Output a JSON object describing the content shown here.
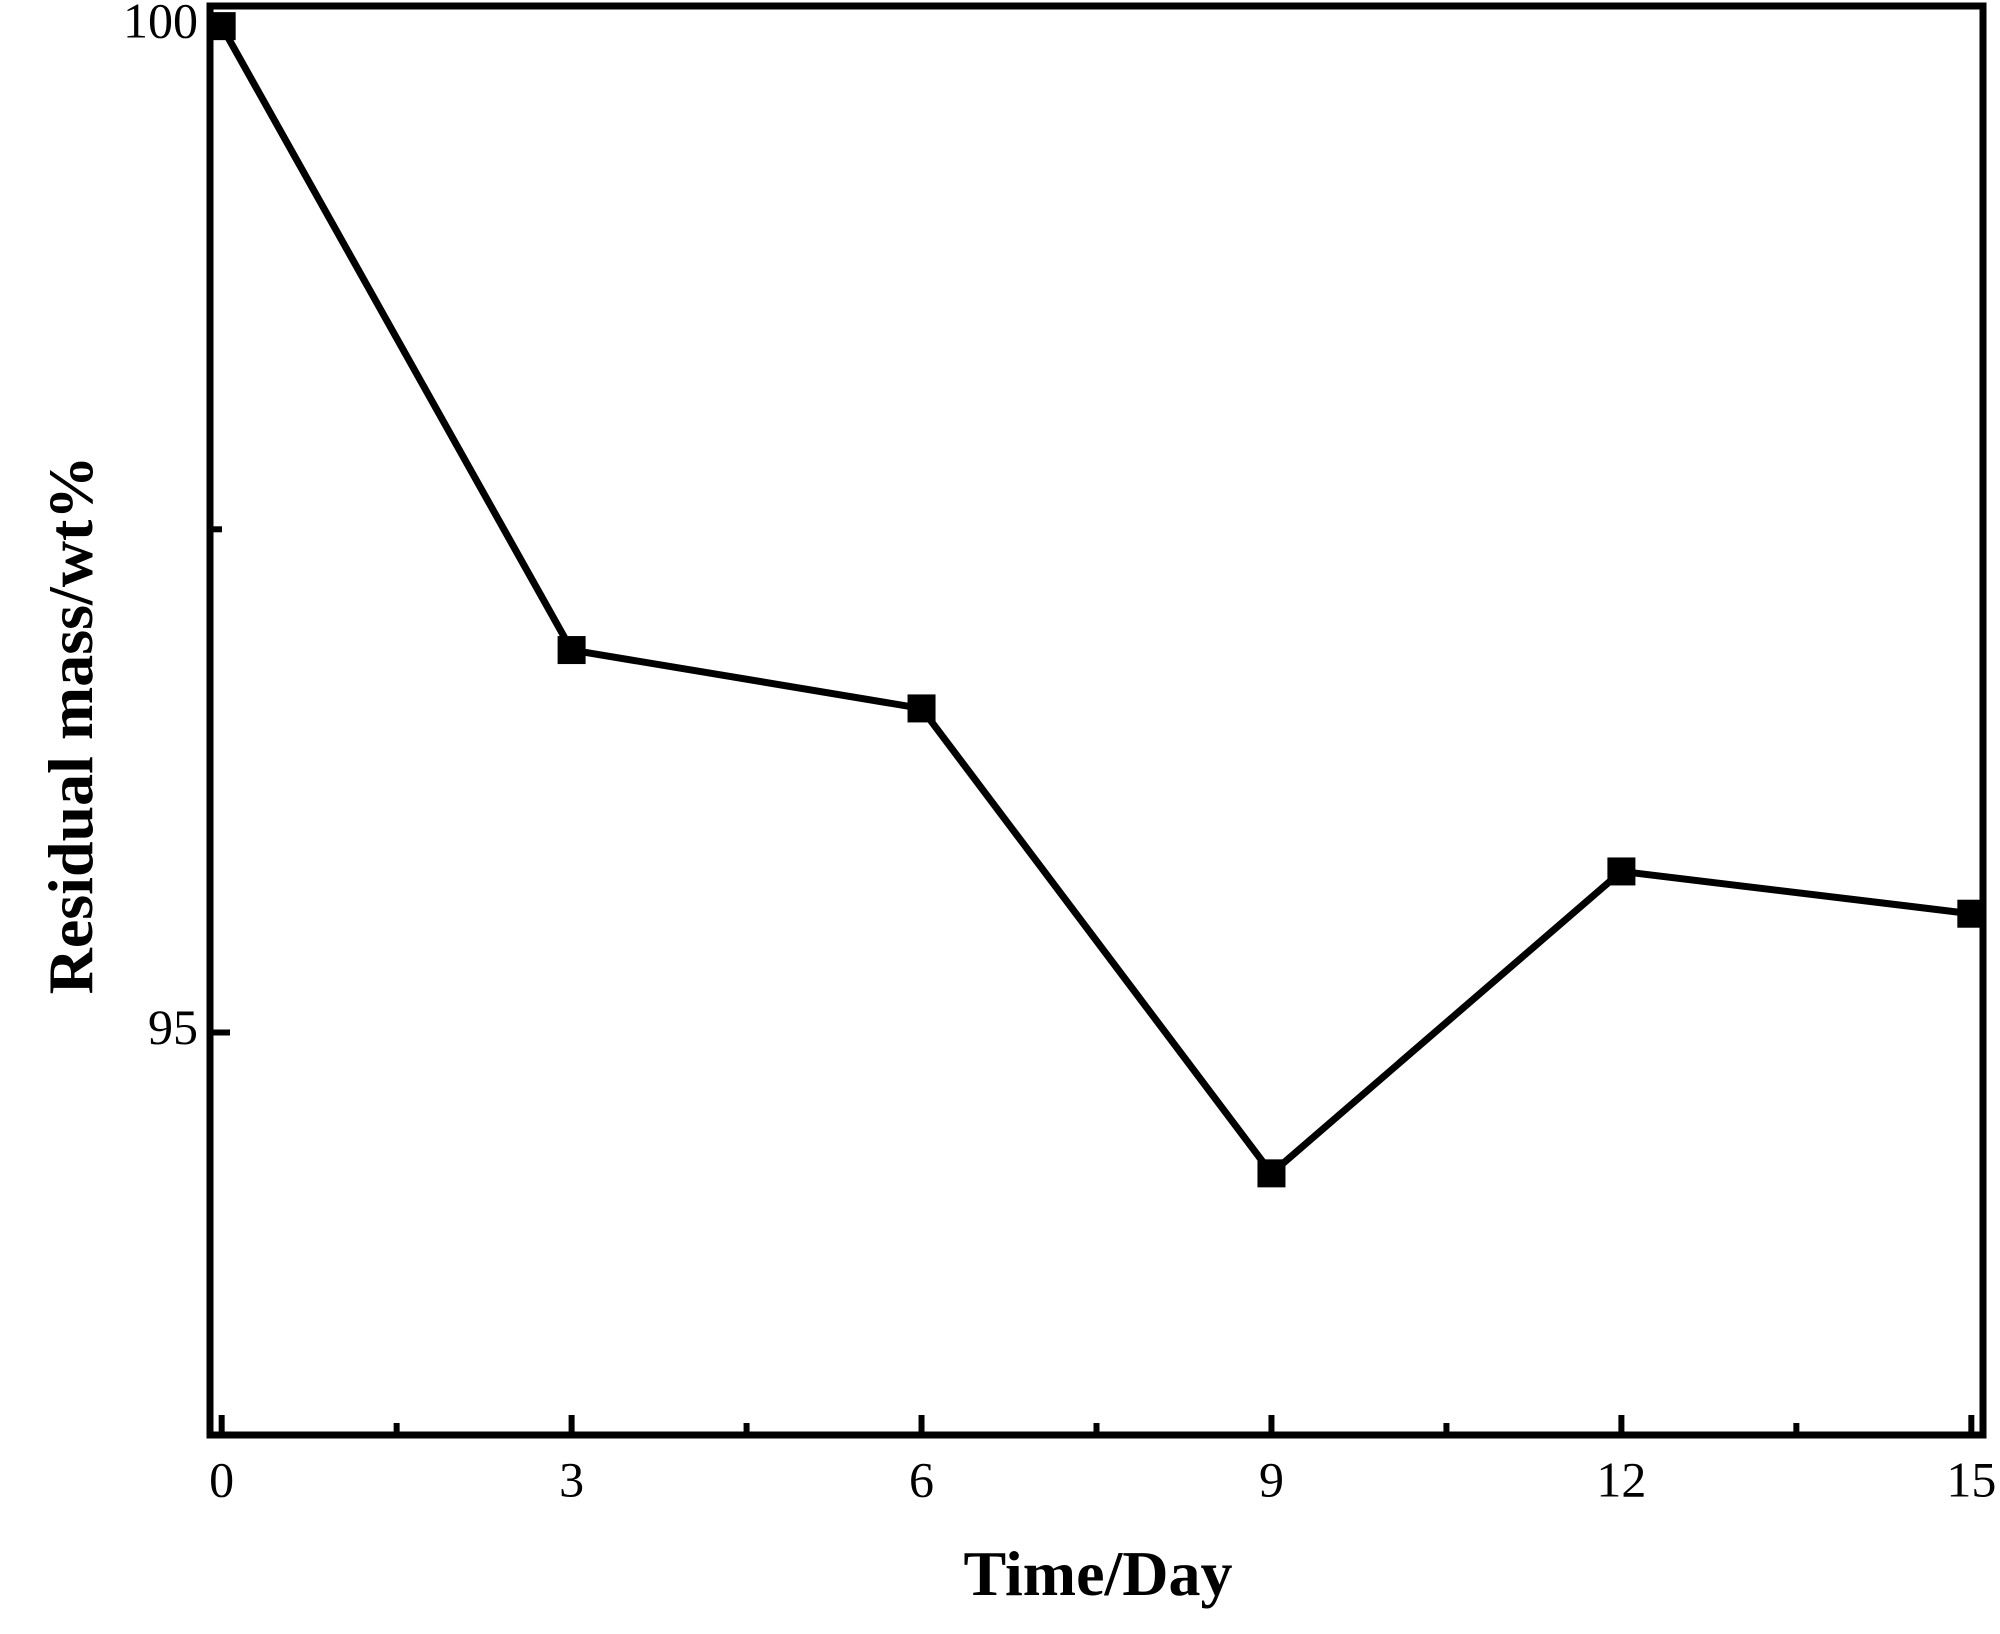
{
  "chart_data": {
    "type": "line",
    "x_label": "Time/Day",
    "y_label": "Residual mass/wt%",
    "x": [
      0,
      3,
      6,
      9,
      12,
      15
    ],
    "series": [
      {
        "color": "#000000",
        "values": [
          100,
          96.9,
          96.61,
          94.3,
          95.8,
          95.59
        ]
      }
    ],
    "xlim": [
      -0.1,
      15.1
    ],
    "xticks": [
      0,
      3,
      6,
      9,
      12,
      15
    ],
    "xminorticks": [
      1.5,
      4.5,
      7.5,
      10.5,
      13.5
    ],
    "ylim": [
      93,
      100.1
    ],
    "yticks": [
      95,
      100
    ],
    "yminorticks": [
      97.5
    ],
    "grid": false
  }
}
